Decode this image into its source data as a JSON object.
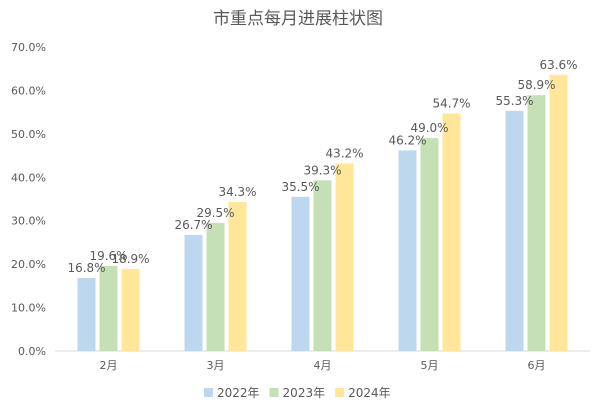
{
  "chart_data": {
    "type": "bar",
    "title": "市重点每月进展柱状图",
    "xlabel": "",
    "ylabel": "",
    "categories": [
      "2月",
      "3月",
      "4月",
      "5月",
      "6月"
    ],
    "series": [
      {
        "name": "2022年",
        "color": "#bdd7ee",
        "values": [
          16.8,
          26.7,
          35.5,
          46.2,
          55.3
        ],
        "labels": [
          "16.8%",
          "26.7%",
          "35.5%",
          "46.2%",
          "55.3%"
        ]
      },
      {
        "name": "2023年",
        "color": "#c5e0b4",
        "values": [
          19.6,
          29.5,
          39.3,
          49.0,
          58.9
        ],
        "labels": [
          "19.6%",
          "29.5%",
          "39.3%",
          "49.0%",
          "58.9%"
        ]
      },
      {
        "name": "2024年",
        "color": "#ffe699",
        "values": [
          18.9,
          34.3,
          43.2,
          54.7,
          63.6
        ],
        "labels": [
          "18.9%",
          "34.3%",
          "43.2%",
          "54.7%",
          "63.6%"
        ]
      }
    ],
    "ylim": [
      0,
      70
    ],
    "yticks": [
      0,
      10,
      20,
      30,
      40,
      50,
      60,
      70
    ],
    "ytick_labels": [
      "0.0%",
      "10.0%",
      "20.0%",
      "30.0%",
      "40.0%",
      "50.0%",
      "60.0%",
      "70.0%"
    ],
    "grid": false,
    "legend_position": "bottom"
  }
}
